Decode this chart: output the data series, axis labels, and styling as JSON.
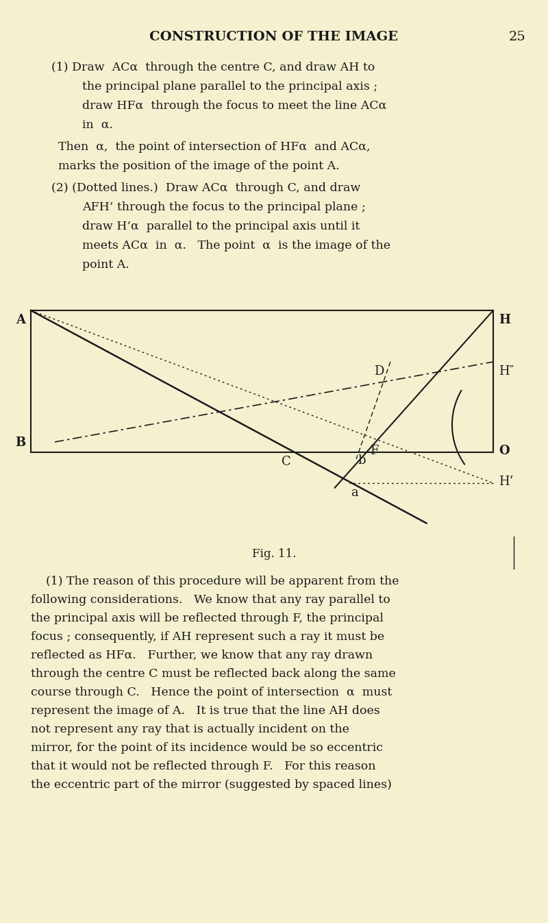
{
  "bg_color": "#f5f0d0",
  "page_number": "25",
  "header": "CONSTRUCTION OF THE IMAGE",
  "text_color": "#1a1a1a",
  "fig_label": "Fig. 11.",
  "paragraph1_lines": [
    "(1) Draw  ACα  through the centre C, and draw AH to",
    "the principal plane parallel to the principal axis ;",
    "draw HFα  through the focus to meet the line ACα",
    "in  α."
  ],
  "paragraph1b_lines": [
    "Then  α,  the point of intersection of HFα  and ACα,",
    "marks the position of the image of the point A."
  ],
  "paragraph2_lines": [
    "(2) (Dotted lines.)  Draw ACα  through C, and draw",
    "AFH’ through the focus to the principal plane ;",
    "draw H’α  parallel to the principal axis until it",
    "meets ACα  in  α.   The point  α  is the image of the",
    "point A."
  ],
  "body_lines": [
    "    (1) The reason of this procedure will be apparent from the",
    "following considerations.   We know that any ray parallel to",
    "the principal axis will be reflected through F, the principal",
    "focus ; consequently, if AH represent such a ray it must be",
    "reflected as HFα.   Further, we know that any ray drawn",
    "through the centre C must be reflected back along the same",
    "course through C.   Hence the point of intersection  α  must",
    "represent the image of A.   It is true that the line AH does",
    "not represent any ray that is actually incident on the",
    "mirror, for the point of its incidence would be so eccentric",
    "that it would not be reflected through F.   For this reason",
    "the eccentric part of the mirror (suggested by spaced lines)"
  ]
}
